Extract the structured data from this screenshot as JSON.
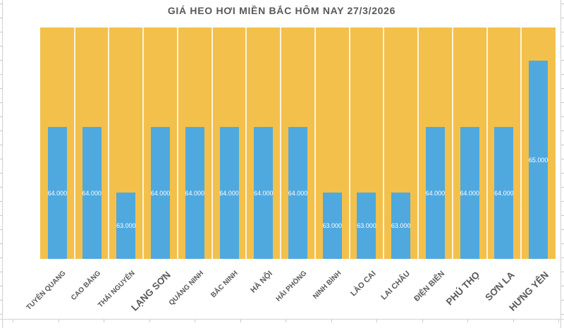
{
  "title": "GIÁ HEO HƠI MIỀN BẮC HÔM NAY 27/3/2026",
  "colors": {
    "bar": "#4FA9DF",
    "plot_background": "#F3C04B",
    "category_separator": "#FFFFFF",
    "title_text": "#595959",
    "axis_label_text": "#595959",
    "value_label_text": "#FFFFFF",
    "sheet_gridline": "#D0D0D0"
  },
  "chart_data": {
    "type": "bar",
    "title": "GIÁ HEO HƠI MIỀN BẮC HÔM NAY 27/3/2026",
    "categories": [
      "TUYÊN QUANG",
      "CAO BẰNG",
      "THÁI NGUYÊN",
      "LẠNG SƠN",
      "QUẢNG NINH",
      "BẮC NINH",
      "HÀ NỘI",
      "HẢI PHÒNG",
      "NINH BÌNH",
      "LÀO CAI",
      "LAI CHÂU",
      "ĐIỆN BIÊN",
      "PHÚ THỌ",
      "SƠN LA",
      "HƯNG YÊN"
    ],
    "values": [
      64000,
      64000,
      63000,
      64000,
      64000,
      64000,
      64000,
      64000,
      63000,
      63000,
      63000,
      64000,
      64000,
      64000,
      65000
    ],
    "value_labels": [
      "64.000",
      "64.000",
      "63.000",
      "64.000",
      "64.000",
      "64.000",
      "64.000",
      "64.000",
      "63.000",
      "63.000",
      "63.000",
      "64.000",
      "64.000",
      "64.000",
      "65.000"
    ],
    "xlabel": "",
    "ylabel": "",
    "ylim": [
      62000,
      65500
    ],
    "legend": "none",
    "grid": "vertical white separators between categories; no horizontal gridlines; value labels centered inside bars"
  }
}
